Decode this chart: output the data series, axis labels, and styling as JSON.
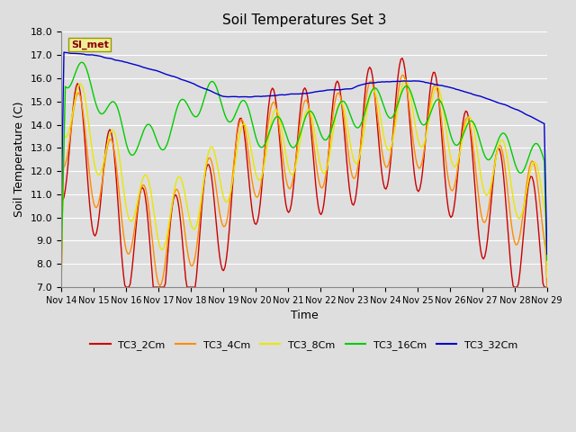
{
  "title": "Soil Temperatures Set 3",
  "xlabel": "Time",
  "ylabel": "Soil Temperature (C)",
  "ylim": [
    7.0,
    18.0
  ],
  "yticks": [
    7.0,
    8.0,
    9.0,
    10.0,
    11.0,
    12.0,
    13.0,
    14.0,
    15.0,
    16.0,
    17.0,
    18.0
  ],
  "plot_bg_color": "#dedede",
  "fig_bg_color": "#dedede",
  "grid_color": "#ffffff",
  "colors": {
    "TC3_2Cm": "#cc0000",
    "TC3_4Cm": "#ff8c00",
    "TC3_8Cm": "#e8e800",
    "TC3_16Cm": "#00cc00",
    "TC3_32Cm": "#0000cc"
  },
  "legend_label": "SI_met",
  "x_tick_labels": [
    "Nov 14",
    "Nov 15",
    "Nov 16",
    "Nov 17",
    "Nov 18",
    "Nov 19",
    "Nov 20",
    "Nov 21",
    "Nov 22",
    "Nov 23",
    "Nov 24",
    "Nov 25",
    "Nov 26",
    "Nov 27",
    "Nov 28",
    "Nov 29"
  ],
  "linewidth": 1.0
}
